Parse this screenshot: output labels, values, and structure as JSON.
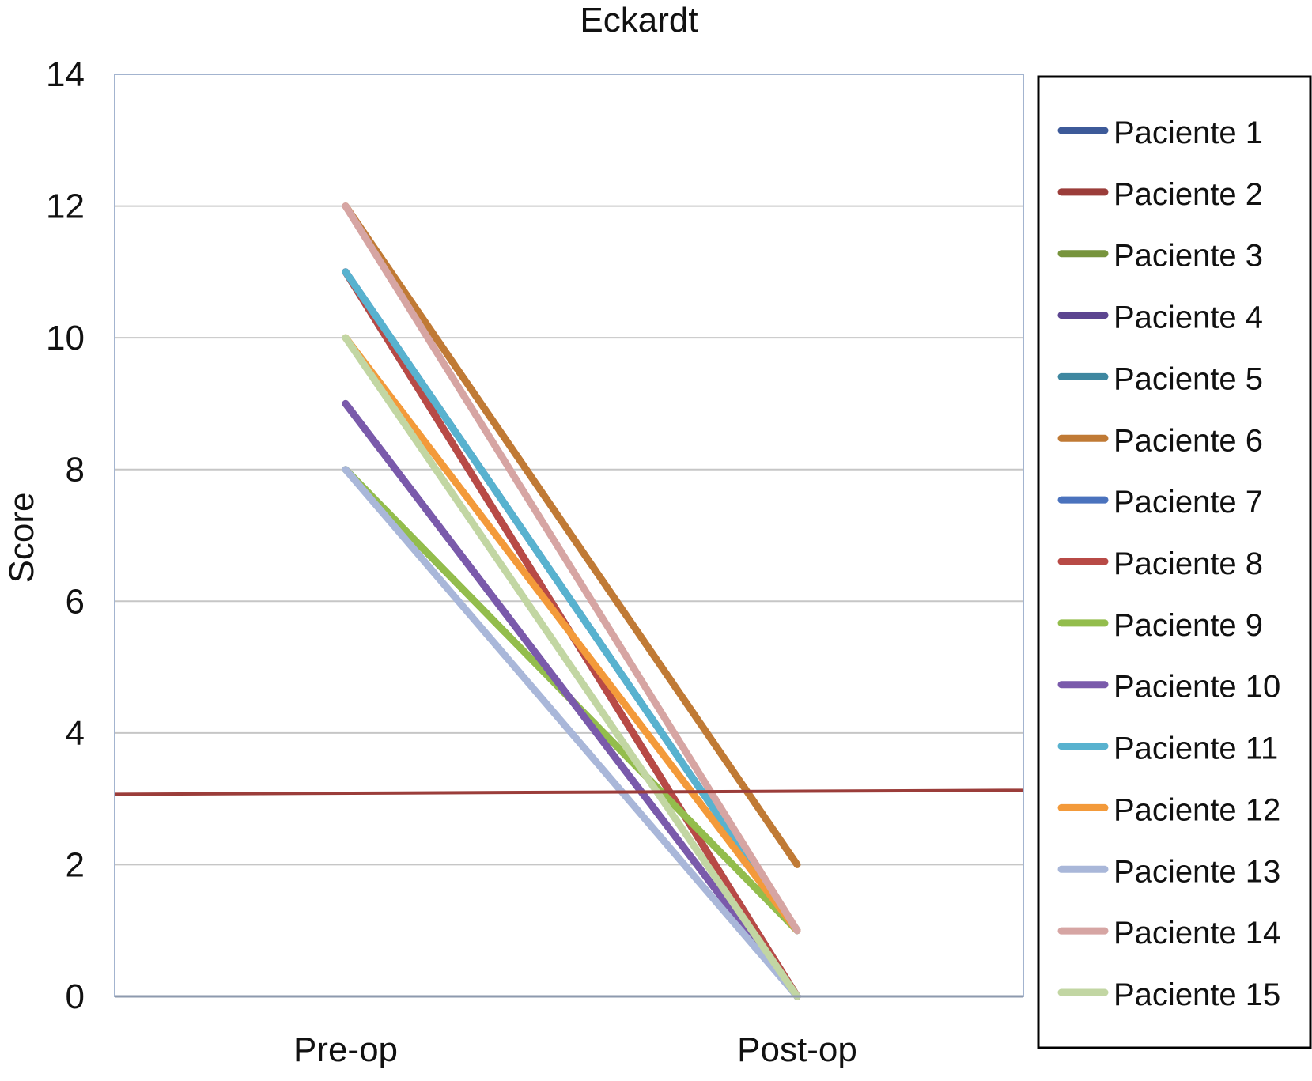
{
  "chart_data": {
    "type": "line",
    "title": "Eckardt",
    "ylabel": "Score",
    "xlabel": "",
    "categories": [
      "Pre-op",
      "Post-op"
    ],
    "ylim": [
      0,
      14
    ],
    "yticks": [
      0,
      2,
      4,
      6,
      8,
      10,
      12,
      14
    ],
    "grid": true,
    "legend_position": "right",
    "reference_line": {
      "y_start": 3.07,
      "y_end": 3.13,
      "color": "#9b3d3a"
    },
    "series": [
      {
        "name": "Paciente 1",
        "values": [
          11,
          0
        ],
        "color": "#3d5a99"
      },
      {
        "name": "Paciente 2",
        "values": [
          11,
          0
        ],
        "color": "#9b3d3a"
      },
      {
        "name": "Paciente 3",
        "values": [
          8,
          1
        ],
        "color": "#77943d"
      },
      {
        "name": "Paciente 4",
        "values": [
          9,
          0
        ],
        "color": "#5c4590"
      },
      {
        "name": "Paciente 5",
        "values": [
          11,
          1
        ],
        "color": "#3e87a0"
      },
      {
        "name": "Paciente 6",
        "values": [
          12,
          2
        ],
        "color": "#c07a35"
      },
      {
        "name": "Paciente 7",
        "values": [
          11,
          1
        ],
        "color": "#4a72bd"
      },
      {
        "name": "Paciente 8",
        "values": [
          11,
          0
        ],
        "color": "#b84a46"
      },
      {
        "name": "Paciente 9",
        "values": [
          8,
          1
        ],
        "color": "#93bd4c"
      },
      {
        "name": "Paciente 10",
        "values": [
          9,
          0
        ],
        "color": "#7a5aab"
      },
      {
        "name": "Paciente 11",
        "values": [
          11,
          1
        ],
        "color": "#58b2cf"
      },
      {
        "name": "Paciente 12",
        "values": [
          10,
          1
        ],
        "color": "#f39a3a"
      },
      {
        "name": "Paciente 13",
        "values": [
          8,
          0
        ],
        "color": "#a9b7d9"
      },
      {
        "name": "Paciente 14",
        "values": [
          12,
          1
        ],
        "color": "#d6a5a3"
      },
      {
        "name": "Paciente 15",
        "values": [
          10,
          0
        ],
        "color": "#c2d6a3"
      }
    ]
  }
}
